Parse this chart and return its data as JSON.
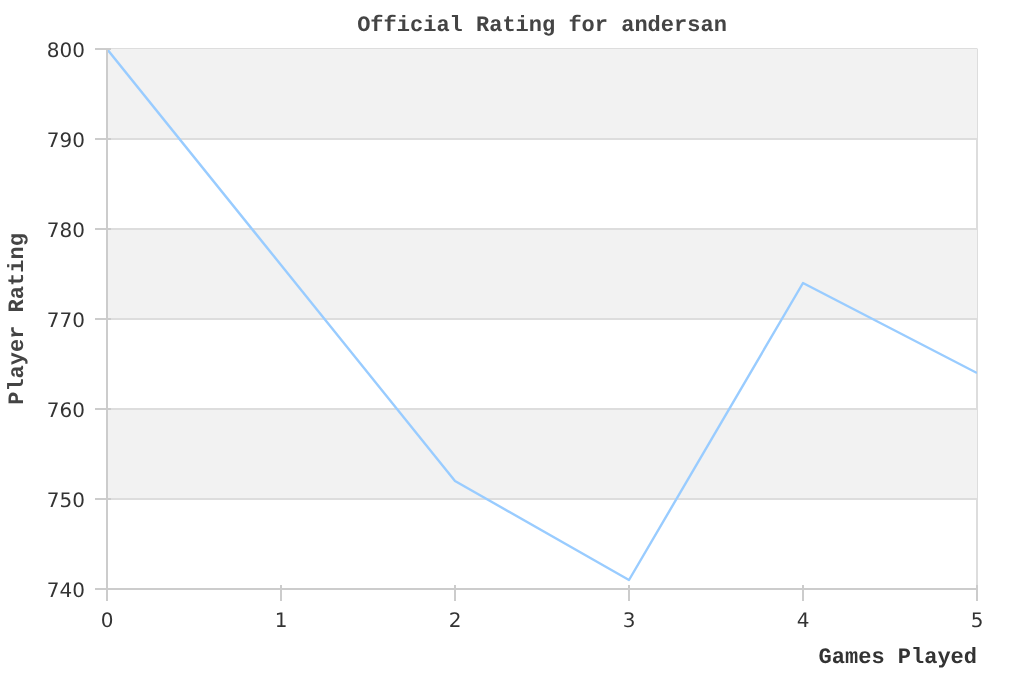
{
  "chart_data": {
    "type": "line",
    "title": "Official Rating for andersan",
    "xlabel": "Games Played",
    "ylabel": "Player Rating",
    "x": [
      0,
      1,
      2,
      3,
      4,
      5
    ],
    "series": [
      {
        "color": "#99ccff",
        "values": [
          800,
          776,
          752,
          741,
          774,
          764
        ]
      }
    ],
    "xlim": [
      0,
      5
    ],
    "xticks": [
      0,
      1,
      2,
      3,
      4,
      5
    ],
    "ylim": [
      740,
      800
    ],
    "yticks": [
      740,
      750,
      760,
      770,
      780,
      790,
      800
    ],
    "grid": "y",
    "marker": "none",
    "line_style": "solid"
  }
}
